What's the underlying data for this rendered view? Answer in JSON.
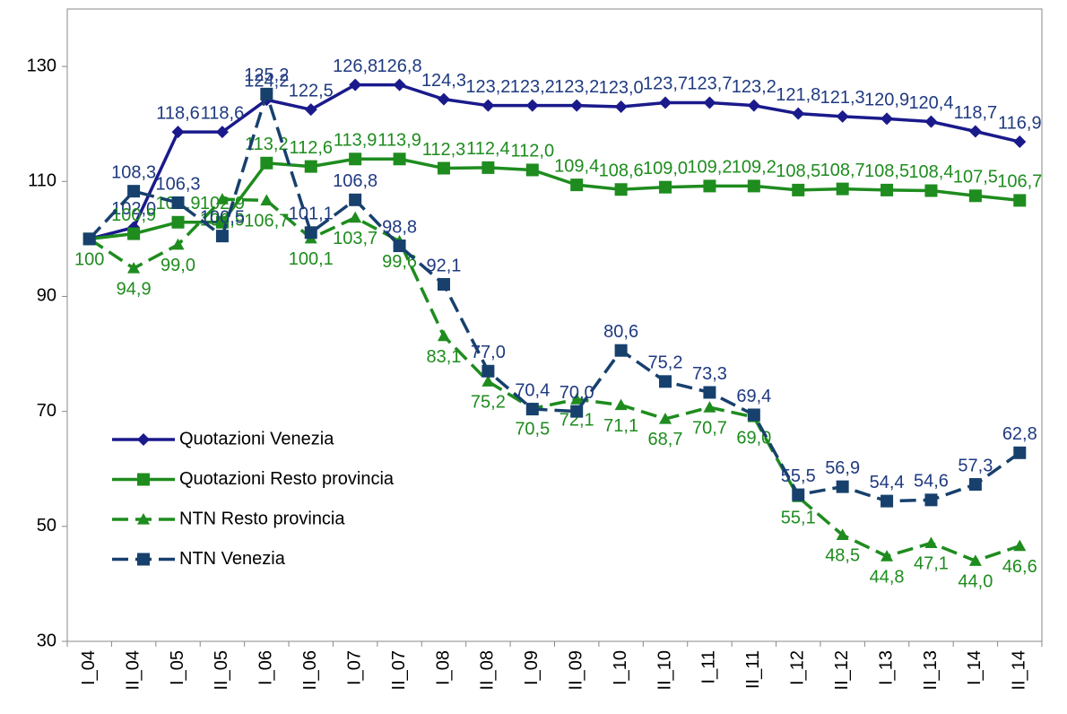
{
  "chart_data": {
    "type": "line",
    "categories": [
      "I_04",
      "II_04",
      "I_05",
      "II_05",
      "I_06",
      "II_06",
      "I_07",
      "II_07",
      "I_08",
      "II_08",
      "I_09",
      "II_09",
      "I_10",
      "II_10",
      "I_11",
      "II_11",
      "I_12",
      "II_12",
      "I_13",
      "II_13",
      "I_14",
      "II_14"
    ],
    "ylim": [
      30,
      140
    ],
    "yticks": [
      30,
      50,
      70,
      90,
      110,
      130
    ],
    "series": [
      {
        "name": "Quotazioni Venezia",
        "color": "#1a1a8c",
        "label_color": "#1f3a80",
        "marker": "diamond",
        "dashed": false,
        "values": [
          100,
          102.0,
          118.6,
          118.6,
          124.2,
          122.5,
          126.8,
          126.8,
          124.3,
          123.2,
          123.2,
          123.2,
          123.0,
          123.7,
          123.7,
          123.2,
          121.8,
          121.3,
          120.9,
          120.4,
          118.7,
          116.9
        ],
        "value_labels": [
          null,
          "102,0",
          "118,6",
          "118,6",
          "124,2",
          "122,5",
          "126,8",
          "126,8",
          "124,3",
          "123,2",
          "123,2",
          "123,2",
          "123,0",
          "123,7",
          "123,7",
          "123,2",
          "121,8",
          "121,3",
          "120,9",
          "120,4",
          "118,7",
          "116,9"
        ]
      },
      {
        "name": "Quotazioni Resto provincia",
        "color": "#1e8c1e",
        "label_color": "#1e8c1e",
        "marker": "square",
        "dashed": false,
        "values": [
          100,
          100.9,
          102.9,
          102.9,
          113.2,
          112.6,
          113.9,
          113.9,
          112.3,
          112.4,
          112.0,
          109.4,
          108.6,
          109.0,
          109.2,
          109.2,
          108.5,
          108.7,
          108.5,
          108.4,
          107.5,
          106.7
        ],
        "value_labels": [
          null,
          "100,9",
          "102,9",
          "102,9",
          "113,2",
          "112,6",
          "113,9",
          "113,9",
          "112,3",
          "112,4",
          "112,0",
          "109,4",
          "108,6",
          "109,0",
          "109,2",
          "109,2",
          "108,5",
          "108,7",
          "108,5",
          "108,4",
          "107,5",
          "106,7"
        ]
      },
      {
        "name": "NTN Resto provincia",
        "color": "#1e8c1e",
        "label_color": "#1e8c1e",
        "marker": "triangle",
        "dashed": true,
        "values": [
          100,
          94.9,
          99.0,
          106.9,
          106.7,
          100.1,
          103.7,
          99.6,
          83.1,
          75.2,
          70.5,
          72.1,
          71.1,
          68.7,
          70.7,
          69.0,
          55.1,
          48.5,
          44.8,
          47.1,
          44.0,
          46.6
        ],
        "value_labels": [
          "100",
          "94,9",
          "99,0",
          "106,9",
          "106,7",
          "100,1",
          "103,7",
          "99,6",
          "83,1",
          "75,2",
          "70,5",
          "72,1",
          "71,1",
          "68,7",
          "70,7",
          "69,0",
          "55,1",
          "48,5",
          "44,8",
          "47,1",
          "44,0",
          "46,6"
        ]
      },
      {
        "name": "NTN  Venezia",
        "color": "#17406d",
        "label_color": "#1f3a80",
        "marker": "square",
        "dashed": true,
        "values": [
          100,
          108.3,
          106.3,
          100.5,
          125.2,
          101.1,
          106.8,
          98.8,
          92.1,
          77.0,
          70.4,
          70.0,
          80.6,
          75.2,
          73.3,
          69.4,
          55.5,
          56.9,
          54.4,
          54.6,
          57.3,
          62.8
        ],
        "value_labels": [
          null,
          "108,3",
          "106,3",
          "100,5",
          "125,2",
          "101,1",
          "106,8",
          "98,8",
          "92,1",
          "77,0",
          "70,4",
          "70,0",
          "80,6",
          "75,2",
          "73,3",
          "69,4",
          "55,5",
          "56,9",
          "54,4",
          "54,6",
          "57,3",
          "62,8"
        ]
      }
    ]
  }
}
